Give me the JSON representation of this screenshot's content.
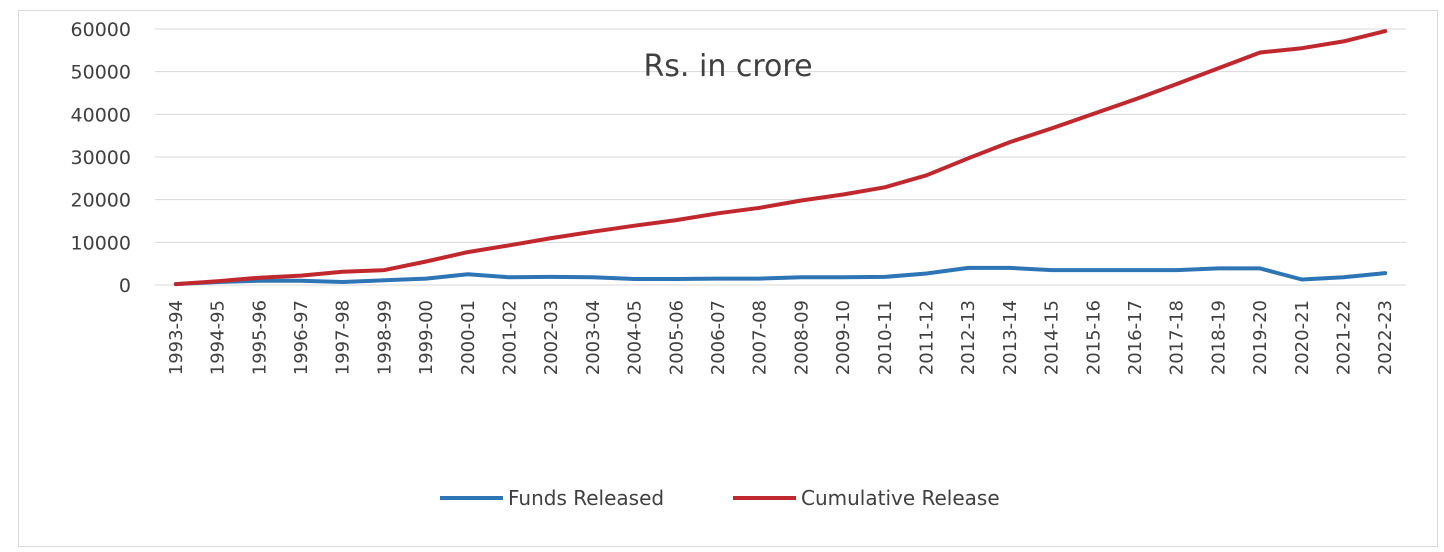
{
  "chart_data": {
    "type": "line",
    "annotation": "Rs. in crore",
    "categories": [
      "1993-94",
      "1994-95",
      "1995-96",
      "1996-97",
      "1997-98",
      "1998-99",
      "1999-00",
      "2000-01",
      "2001-02",
      "2002-03",
      "2003-04",
      "2004-05",
      "2005-06",
      "2006-07",
      "2007-08",
      "2008-09",
      "2009-10",
      "2010-11",
      "2011-12",
      "2012-13",
      "2013-14",
      "2014-15",
      "2015-16",
      "2016-17",
      "2017-18",
      "2018-19",
      "2019-20",
      "2020-21",
      "2021-22",
      "2022-23"
    ],
    "series": [
      {
        "name": "Funds Released",
        "color": "#2e75b6",
        "values": [
          200,
          700,
          1000,
          1000,
          700,
          1100,
          1500,
          2500,
          1800,
          1900,
          1800,
          1400,
          1400,
          1500,
          1500,
          1800,
          1800,
          1900,
          2700,
          4000,
          4000,
          3500,
          3500,
          3500,
          3500,
          3900,
          3900,
          1300,
          1800,
          2800
        ]
      },
      {
        "name": "Cumulative Release",
        "color": "#c0282d",
        "values": [
          200,
          900,
          1700,
          2200,
          3100,
          3500,
          5500,
          7700,
          9300,
          11000,
          12500,
          13900,
          15200,
          16800,
          18100,
          19800,
          21200,
          22900,
          25700,
          29700,
          33500,
          36700,
          40100,
          43500,
          47100,
          50800,
          54500,
          55500,
          57100,
          59500
        ]
      }
    ],
    "yticks": [
      "0",
      "10000",
      "20000",
      "30000",
      "40000",
      "50000",
      "60000"
    ],
    "ylim": [
      0,
      60000
    ],
    "grid": true,
    "legend_position": "bottom"
  }
}
